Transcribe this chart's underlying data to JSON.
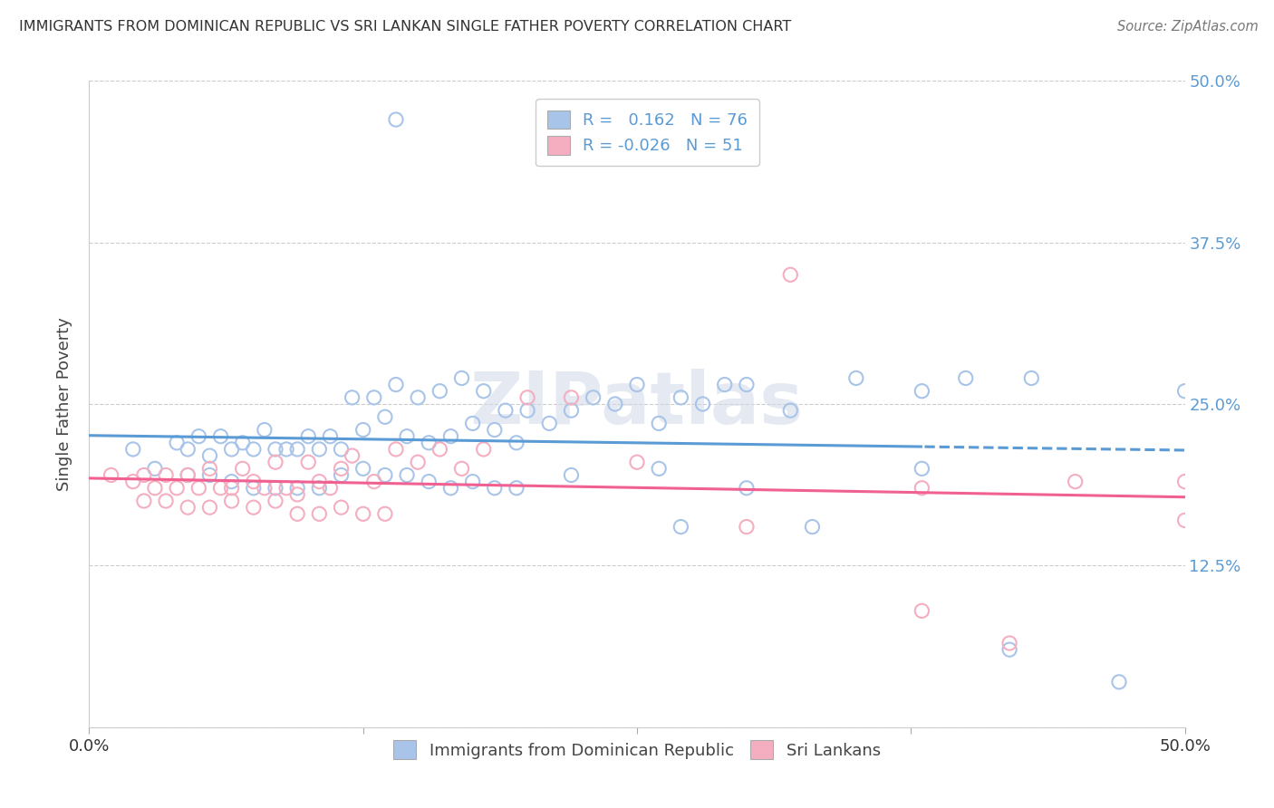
{
  "title": "IMMIGRANTS FROM DOMINICAN REPUBLIC VS SRI LANKAN SINGLE FATHER POVERTY CORRELATION CHART",
  "source": "Source: ZipAtlas.com",
  "ylabel": "Single Father Poverty",
  "xlim": [
    0.0,
    0.5
  ],
  "ylim": [
    0.0,
    0.5
  ],
  "R_blue": 0.162,
  "N_blue": 76,
  "R_pink": -0.026,
  "N_pink": 51,
  "color_blue": "#a8c4e8",
  "color_pink": "#f4aec0",
  "line_blue": "#5b9bd5",
  "line_pink": "#f06090",
  "right_tick_color": "#5b9bd5",
  "legend_label_blue": "Immigrants from Dominican Republic",
  "legend_label_pink": "Sri Lankans",
  "watermark": "ZIPatlas",
  "grid_color": "#cccccc",
  "blue_x": [
    0.02,
    0.03,
    0.04,
    0.045,
    0.05,
    0.055,
    0.06,
    0.065,
    0.07,
    0.075,
    0.08,
    0.085,
    0.09,
    0.095,
    0.1,
    0.105,
    0.11,
    0.115,
    0.12,
    0.125,
    0.13,
    0.135,
    0.14,
    0.145,
    0.15,
    0.155,
    0.16,
    0.165,
    0.17,
    0.175,
    0.18,
    0.185,
    0.19,
    0.195,
    0.2,
    0.21,
    0.22,
    0.23,
    0.24,
    0.25,
    0.26,
    0.27,
    0.28,
    0.29,
    0.3,
    0.32,
    0.35,
    0.38,
    0.4,
    0.43,
    0.045,
    0.055,
    0.065,
    0.075,
    0.085,
    0.095,
    0.105,
    0.115,
    0.125,
    0.135,
    0.145,
    0.155,
    0.165,
    0.175,
    0.185,
    0.195,
    0.22,
    0.26,
    0.3,
    0.38,
    0.14,
    0.5,
    0.27,
    0.33,
    0.42,
    0.47
  ],
  "blue_y": [
    0.215,
    0.2,
    0.22,
    0.215,
    0.225,
    0.21,
    0.225,
    0.215,
    0.22,
    0.215,
    0.23,
    0.215,
    0.215,
    0.215,
    0.225,
    0.215,
    0.225,
    0.215,
    0.255,
    0.23,
    0.255,
    0.24,
    0.265,
    0.225,
    0.255,
    0.22,
    0.26,
    0.225,
    0.27,
    0.235,
    0.26,
    0.23,
    0.245,
    0.22,
    0.245,
    0.235,
    0.245,
    0.255,
    0.25,
    0.265,
    0.235,
    0.255,
    0.25,
    0.265,
    0.265,
    0.245,
    0.27,
    0.26,
    0.27,
    0.27,
    0.195,
    0.195,
    0.19,
    0.185,
    0.185,
    0.185,
    0.185,
    0.195,
    0.2,
    0.195,
    0.195,
    0.19,
    0.185,
    0.19,
    0.185,
    0.185,
    0.195,
    0.2,
    0.185,
    0.2,
    0.47,
    0.26,
    0.155,
    0.155,
    0.06,
    0.035
  ],
  "pink_x": [
    0.01,
    0.02,
    0.025,
    0.03,
    0.035,
    0.04,
    0.045,
    0.05,
    0.055,
    0.06,
    0.065,
    0.07,
    0.075,
    0.08,
    0.085,
    0.09,
    0.095,
    0.1,
    0.105,
    0.11,
    0.115,
    0.12,
    0.13,
    0.14,
    0.15,
    0.16,
    0.17,
    0.18,
    0.2,
    0.22,
    0.025,
    0.035,
    0.045,
    0.055,
    0.065,
    0.075,
    0.085,
    0.095,
    0.105,
    0.115,
    0.125,
    0.135,
    0.25,
    0.3,
    0.38,
    0.45,
    0.5,
    0.5,
    0.32,
    0.38,
    0.42
  ],
  "pink_y": [
    0.195,
    0.19,
    0.195,
    0.185,
    0.195,
    0.185,
    0.195,
    0.185,
    0.2,
    0.185,
    0.185,
    0.2,
    0.19,
    0.185,
    0.205,
    0.185,
    0.18,
    0.205,
    0.19,
    0.185,
    0.2,
    0.21,
    0.19,
    0.215,
    0.205,
    0.215,
    0.2,
    0.215,
    0.255,
    0.255,
    0.175,
    0.175,
    0.17,
    0.17,
    0.175,
    0.17,
    0.175,
    0.165,
    0.165,
    0.17,
    0.165,
    0.165,
    0.205,
    0.155,
    0.185,
    0.19,
    0.19,
    0.16,
    0.35,
    0.09,
    0.065
  ]
}
